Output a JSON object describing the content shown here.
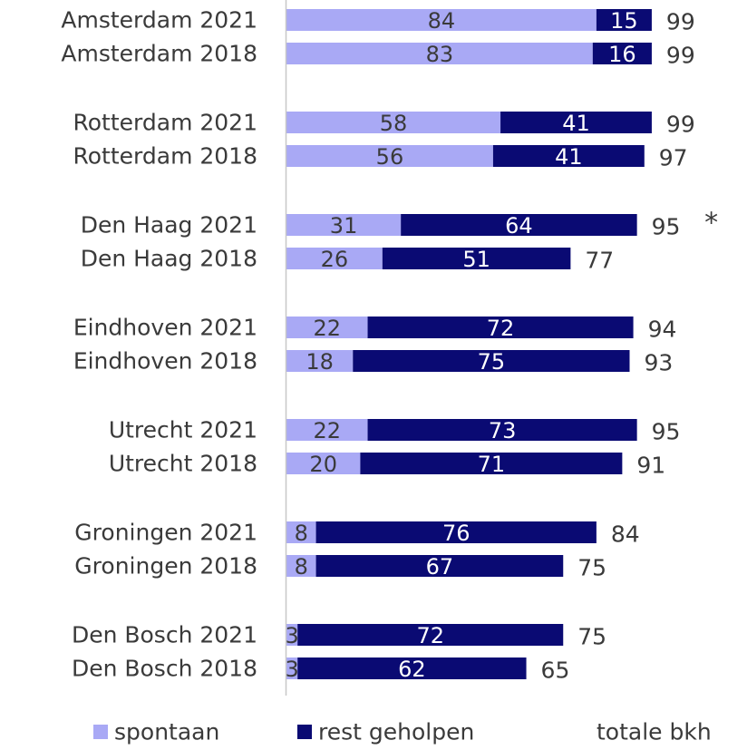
{
  "chart_data": {
    "type": "bar",
    "orientation": "horizontal",
    "stacked": true,
    "categories": [
      "Amsterdam 2021",
      "Amsterdam 2018",
      "Rotterdam 2021",
      "Rotterdam 2018",
      "Den Haag 2021",
      "Den Haag 2018",
      "Eindhoven 2021",
      "Eindhoven 2018",
      "Utrecht 2021",
      "Utrecht 2018",
      "Groningen 2021",
      "Groningen 2018",
      "Den Bosch 2021",
      "Den Bosch 2018"
    ],
    "series": [
      {
        "name": "spontaan",
        "color": "#a9a9f5",
        "values": [
          84,
          83,
          58,
          56,
          31,
          26,
          22,
          18,
          22,
          20,
          8,
          8,
          3,
          3
        ]
      },
      {
        "name": "rest geholpen",
        "color": "#0a0a73",
        "values": [
          15,
          16,
          41,
          41,
          64,
          51,
          72,
          75,
          73,
          71,
          76,
          67,
          72,
          62
        ]
      }
    ],
    "totals": {
      "name": "totale bkh",
      "values": [
        99,
        99,
        99,
        97,
        95,
        77,
        94,
        93,
        95,
        91,
        84,
        75,
        75,
        65
      ]
    },
    "annotations": [
      {
        "category": "Den Haag 2021",
        "text": "*"
      }
    ],
    "xlim": [
      0,
      100
    ],
    "grid": false,
    "legend_position": "bottom"
  }
}
